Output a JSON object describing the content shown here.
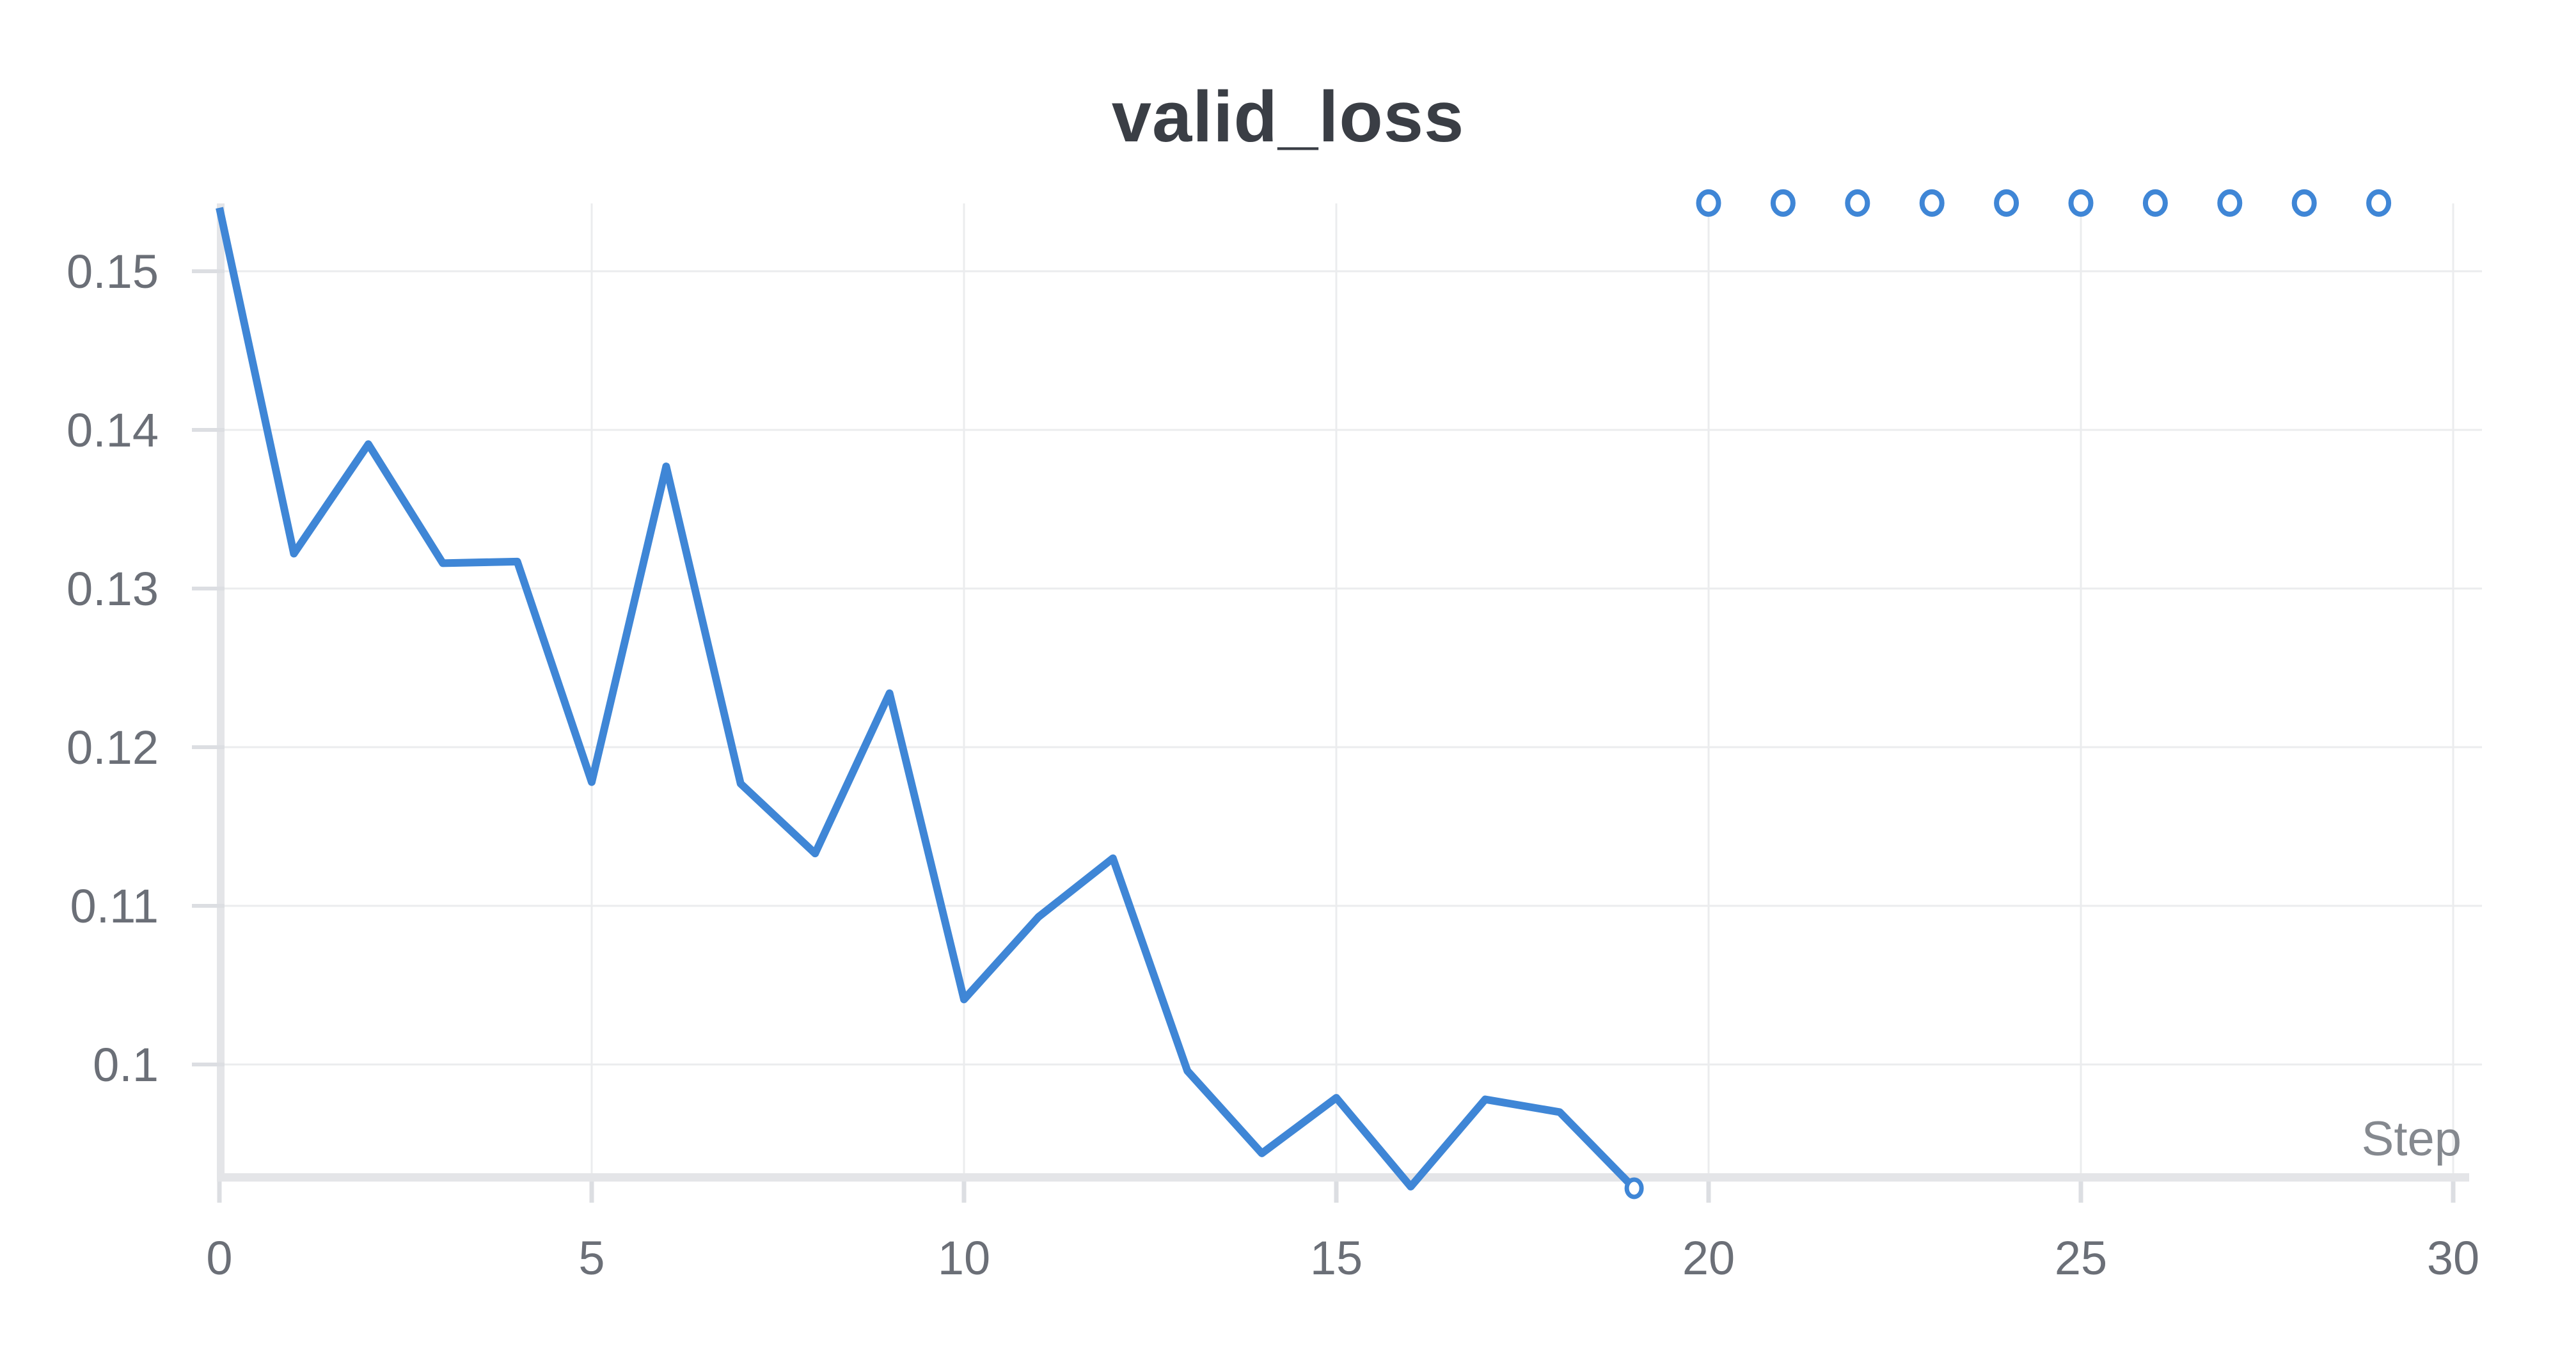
{
  "chart_data": {
    "type": "line",
    "title": "valid_loss",
    "xlabel": "Step",
    "grid": true,
    "legend_position": "none",
    "xlim": [
      0,
      30
    ],
    "ylim": [
      0.0932,
      0.1543
    ],
    "x_ticks": {
      "values": [
        0,
        5,
        10,
        15,
        20,
        25,
        30
      ],
      "labels": [
        "0",
        "5",
        "10",
        "15",
        "20",
        "25",
        "30"
      ]
    },
    "y_ticks": {
      "values": [
        0.15,
        0.14,
        0.13,
        0.12,
        0.11,
        0.1
      ],
      "labels": [
        "0.15",
        "0.14",
        "0.13",
        "0.12",
        "0.11",
        "0.1"
      ]
    },
    "series": [
      {
        "name": "valid_loss",
        "x": [
          0,
          1,
          2,
          3,
          4,
          5,
          6,
          7,
          8,
          9,
          10,
          11,
          12,
          13,
          14,
          15,
          16,
          17,
          18,
          19
        ],
        "y": [
          0.154,
          0.1322,
          0.1391,
          0.1316,
          0.1317,
          0.1178,
          0.1377,
          0.1177,
          0.1133,
          0.1234,
          0.1041,
          0.1093,
          0.113,
          0.0996,
          0.0944,
          0.0979,
          0.0923,
          0.0978,
          0.097,
          0.0922
        ],
        "end_marker": true
      }
    ],
    "pending_point_markers": {
      "x": [
        20,
        21,
        22,
        23,
        24,
        25,
        26,
        27,
        28,
        29
      ],
      "value": 0.1543
    },
    "colors": {
      "line": "#3f86d6",
      "marker_fill": "#ffffff",
      "grid": "#ebecee",
      "axis_band": "#e4e5e8",
      "tick": "#dcdee2",
      "tick_label": "#6b6f77",
      "title": "#3a3e45",
      "xlabel": "#85898f",
      "background": "#ffffff"
    }
  }
}
